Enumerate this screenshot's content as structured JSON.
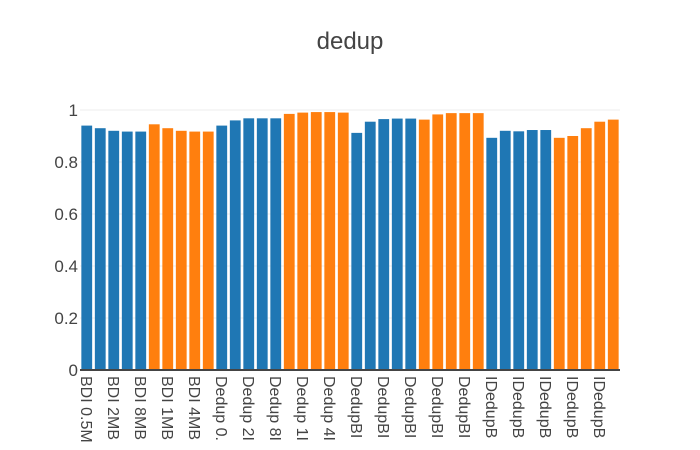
{
  "chart_data": {
    "type": "bar",
    "title": "dedup",
    "xlabel": "",
    "ylabel": "",
    "ylim": [
      0,
      1
    ],
    "grid": true,
    "yticks": [
      "0",
      "0.2",
      "0.4",
      "0.6",
      "0.8",
      "1"
    ],
    "ytick_values": [
      0,
      0.2,
      0.4,
      0.6,
      0.8,
      1
    ],
    "categories": [
      "BDI 0.5M",
      "",
      "BDI 2MB",
      "",
      "BDI 8MB",
      "",
      "BDI 1MB",
      "",
      "BDI 4MB",
      "",
      "Dedup 0.",
      "",
      "Dedup 2I",
      "",
      "Dedup 8I",
      "",
      "Dedup 1I",
      "",
      "Dedup 4I",
      "",
      "DedupBI",
      "",
      "DedupBI",
      "",
      "DedupBI",
      "",
      "DedupBI",
      "",
      "DedupBI",
      "",
      "IDedupB",
      "",
      "IDedupB",
      "",
      "IDedupB",
      "",
      "IDedupB",
      "",
      "IDedupB",
      ""
    ],
    "values": [
      0.94,
      0.93,
      0.92,
      0.917,
      0.917,
      0.945,
      0.93,
      0.92,
      0.917,
      0.917,
      0.94,
      0.96,
      0.968,
      0.968,
      0.968,
      0.985,
      0.99,
      0.992,
      0.992,
      0.99,
      0.912,
      0.955,
      0.965,
      0.967,
      0.967,
      0.963,
      0.983,
      0.988,
      0.988,
      0.988,
      0.893,
      0.92,
      0.918,
      0.923,
      0.923,
      0.893,
      0.9,
      0.93,
      0.955,
      0.963
    ],
    "bar_colors": [
      "#1f77b4",
      "#1f77b4",
      "#1f77b4",
      "#1f77b4",
      "#1f77b4",
      "#ff7f0e",
      "#ff7f0e",
      "#ff7f0e",
      "#ff7f0e",
      "#ff7f0e",
      "#1f77b4",
      "#1f77b4",
      "#1f77b4",
      "#1f77b4",
      "#1f77b4",
      "#ff7f0e",
      "#ff7f0e",
      "#ff7f0e",
      "#ff7f0e",
      "#ff7f0e",
      "#1f77b4",
      "#1f77b4",
      "#1f77b4",
      "#1f77b4",
      "#1f77b4",
      "#ff7f0e",
      "#ff7f0e",
      "#ff7f0e",
      "#ff7f0e",
      "#ff7f0e",
      "#1f77b4",
      "#1f77b4",
      "#1f77b4",
      "#1f77b4",
      "#1f77b4",
      "#ff7f0e",
      "#ff7f0e",
      "#ff7f0e",
      "#ff7f0e",
      "#ff7f0e"
    ],
    "colors": {
      "blue": "#1f77b4",
      "orange": "#ff7f0e",
      "text": "#444444",
      "grid": "#eeeeee",
      "background": "#ffffff"
    }
  }
}
